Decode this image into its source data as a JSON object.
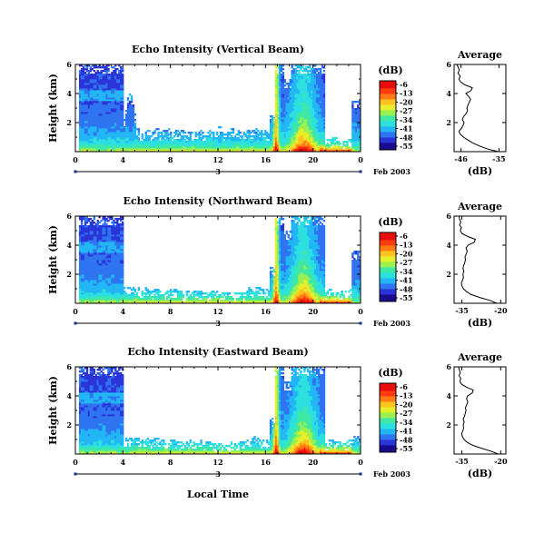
{
  "x_axis_label": "Local Time",
  "colorbar": {
    "unit": "(dB)",
    "ticks": [
      "-6",
      "-13",
      "-20",
      "-27",
      "-34",
      "-41",
      "-48",
      "-55"
    ],
    "colors": [
      "#1a0a8c",
      "#2a35d8",
      "#2f74f0",
      "#22b6f5",
      "#2de0e0",
      "#3fe8a5",
      "#9af050",
      "#e6ef2a",
      "#ffc21f",
      "#ff7a14",
      "#ff3a0f",
      "#e80c0c"
    ]
  },
  "chart_data": [
    {
      "type": "heatmap",
      "title": "Echo Intensity (Vertical Beam)",
      "ylabel": "Height (km)",
      "x_ticks": [
        "0",
        "4",
        "8",
        "12",
        "16",
        "20",
        "0"
      ],
      "y_ticks": [
        "2",
        "4",
        "6"
      ],
      "xlim": [
        0,
        24
      ],
      "ylim": [
        0,
        6
      ],
      "day_label": "3",
      "date_label": "Feb 2003",
      "colorbar_range_db": [
        -55,
        -6
      ],
      "profile": {
        "title": "Average",
        "xlabel": "(dB)",
        "x_ticks": [
          "-46",
          "-35"
        ],
        "xlim": [
          -48,
          -33
        ],
        "y_ticks": [
          "2",
          "4",
          "6"
        ],
        "heights_km": [
          0.0,
          0.2,
          0.4,
          0.6,
          0.8,
          1.0,
          1.2,
          1.4,
          1.6,
          1.8,
          2.0,
          2.2,
          2.4,
          2.6,
          2.8,
          3.0,
          3.2,
          3.4,
          3.6,
          3.8,
          4.0,
          4.2,
          4.4,
          4.6,
          4.8,
          5.0,
          5.2,
          5.4,
          5.6,
          5.8,
          6.0
        ],
        "values_db": [
          -35.2,
          -38.5,
          -40.8,
          -42.6,
          -44.0,
          -45.3,
          -46.2,
          -46.6,
          -45.9,
          -45.4,
          -45.1,
          -45.6,
          -45.3,
          -44.6,
          -44.1,
          -44.3,
          -44.0,
          -43.6,
          -43.2,
          -43.8,
          -44.6,
          -43.1,
          -42.7,
          -44.9,
          -46.1,
          -46.6,
          -46.2,
          -46.9,
          -46.5,
          -46.8,
          -47.2
        ]
      }
    },
    {
      "type": "heatmap",
      "title": "Echo Intensity (Northward Beam)",
      "ylabel": "Height (km)",
      "x_ticks": [
        "0",
        "4",
        "8",
        "12",
        "16",
        "20",
        "0"
      ],
      "y_ticks": [
        "2",
        "4",
        "6"
      ],
      "xlim": [
        0,
        24
      ],
      "ylim": [
        0,
        6
      ],
      "day_label": "3",
      "date_label": "Feb 2003",
      "colorbar_range_db": [
        -55,
        -6
      ],
      "profile": {
        "title": "Average",
        "xlabel": "(dB)",
        "x_ticks": [
          "-35",
          "-20"
        ],
        "xlim": [
          -38,
          -18
        ],
        "y_ticks": [
          "2",
          "4",
          "6"
        ],
        "heights_km": [
          0.0,
          0.2,
          0.4,
          0.6,
          0.8,
          1.0,
          1.2,
          1.4,
          1.6,
          1.8,
          2.0,
          2.2,
          2.4,
          2.6,
          2.8,
          3.0,
          3.2,
          3.4,
          3.6,
          3.8,
          4.0,
          4.2,
          4.4,
          4.6,
          4.8,
          5.0,
          5.2,
          5.4,
          5.6,
          5.8,
          6.0
        ],
        "values_db": [
          -21.5,
          -24.2,
          -28.1,
          -31.4,
          -33.2,
          -34.4,
          -35.0,
          -35.2,
          -34.7,
          -34.4,
          -34.6,
          -34.2,
          -34.6,
          -34.3,
          -33.9,
          -33.6,
          -33.8,
          -33.3,
          -32.9,
          -33.4,
          -32.6,
          -30.2,
          -29.8,
          -32.8,
          -34.9,
          -35.6,
          -35.2,
          -35.9,
          -35.4,
          -35.9,
          -36.1
        ]
      }
    },
    {
      "type": "heatmap",
      "title": "Echo Intensity (Eastward Beam)",
      "ylabel": "Height (km)",
      "x_ticks": [
        "0",
        "4",
        "8",
        "12",
        "16",
        "20",
        "0"
      ],
      "y_ticks": [
        "2",
        "4",
        "6"
      ],
      "xlim": [
        0,
        24
      ],
      "ylim": [
        0,
        6
      ],
      "day_label": "3",
      "date_label": "Feb 2003",
      "colorbar_range_db": [
        -55,
        -6
      ],
      "profile": {
        "title": "Average",
        "xlabel": "(dB)",
        "x_ticks": [
          "-35",
          "-20"
        ],
        "xlim": [
          -38,
          -18
        ],
        "y_ticks": [
          "2",
          "4",
          "6"
        ],
        "heights_km": [
          0.0,
          0.2,
          0.4,
          0.6,
          0.8,
          1.0,
          1.2,
          1.4,
          1.6,
          1.8,
          2.0,
          2.2,
          2.4,
          2.6,
          2.8,
          3.0,
          3.2,
          3.4,
          3.6,
          3.8,
          4.0,
          4.2,
          4.4,
          4.6,
          4.8,
          5.0,
          5.2,
          5.4,
          5.6,
          5.8,
          6.0
        ],
        "values_db": [
          -21.0,
          -23.8,
          -27.5,
          -30.8,
          -32.9,
          -34.1,
          -34.8,
          -35.1,
          -34.6,
          -34.3,
          -34.5,
          -34.1,
          -34.5,
          -34.0,
          -33.7,
          -33.4,
          -33.6,
          -33.1,
          -32.7,
          -33.2,
          -32.8,
          -31.0,
          -30.6,
          -33.2,
          -35.1,
          -35.8,
          -35.4,
          -36.1,
          -35.6,
          -36.0,
          -36.3
        ]
      }
    }
  ]
}
